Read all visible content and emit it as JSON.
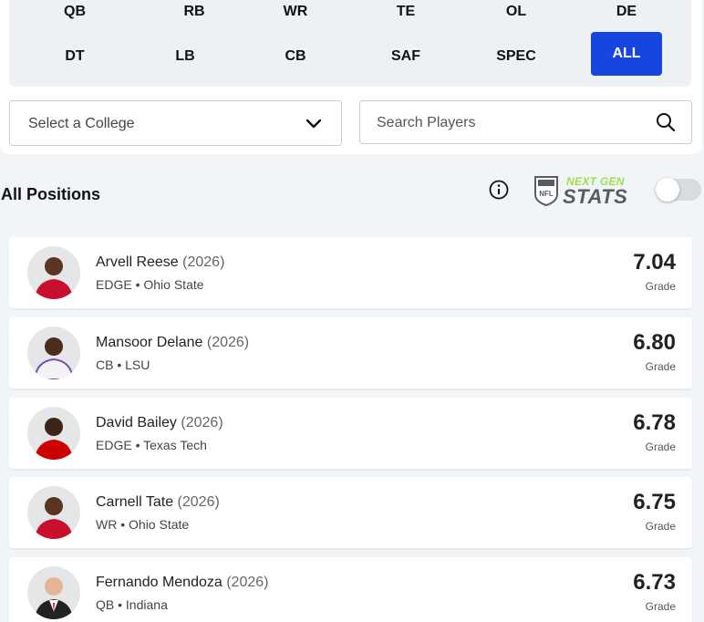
{
  "positions": {
    "row1": [
      "QB",
      "RB",
      "WR",
      "TE",
      "OL",
      "DE"
    ],
    "row2": [
      "DT",
      "LB",
      "CB",
      "SAF",
      "SPEC",
      "ALL"
    ],
    "active": "ALL",
    "active_color": "#1645e0"
  },
  "college_select": {
    "label": "Select a College",
    "icon": "chevron-down-icon"
  },
  "search": {
    "placeholder": "Search Players",
    "value": "",
    "icon": "search-icon"
  },
  "section": {
    "title": "All Positions",
    "info_icon": "info-icon"
  },
  "ngs_logo": {
    "next": "NEXT GEN",
    "stats": "STATS",
    "shield": "NFL",
    "next_color": "#9ee04a",
    "stats_color": "#555c63"
  },
  "toggle": {
    "on": false
  },
  "players": [
    {
      "name": "Arvell Reese",
      "year": "(2026)",
      "position": "EDGE",
      "school": "Ohio State",
      "grade": "7.04",
      "grade_label": "Grade",
      "jersey_color": "#c8102e",
      "skin_color": "#5a3522"
    },
    {
      "name": "Mansoor Delane",
      "year": "(2026)",
      "position": "CB",
      "school": "LSU",
      "grade": "6.80",
      "grade_label": "Grade",
      "jersey_color": "#f2f2f2",
      "skin_color": "#4a2d1c"
    },
    {
      "name": "David Bailey",
      "year": "(2026)",
      "position": "EDGE",
      "school": "Texas Tech",
      "grade": "6.78",
      "grade_label": "Grade",
      "jersey_color": "#cc0000",
      "skin_color": "#3d2418"
    },
    {
      "name": "Carnell Tate",
      "year": "(2026)",
      "position": "WR",
      "school": "Ohio State",
      "grade": "6.75",
      "grade_label": "Grade",
      "jersey_color": "#c8102e",
      "skin_color": "#5a3522"
    },
    {
      "name": "Fernando Mendoza",
      "year": "(2026)",
      "position": "QB",
      "school": "Indiana",
      "grade": "6.73",
      "grade_label": "Grade",
      "jersey_color": "#222222",
      "skin_color": "#e3b596"
    }
  ]
}
